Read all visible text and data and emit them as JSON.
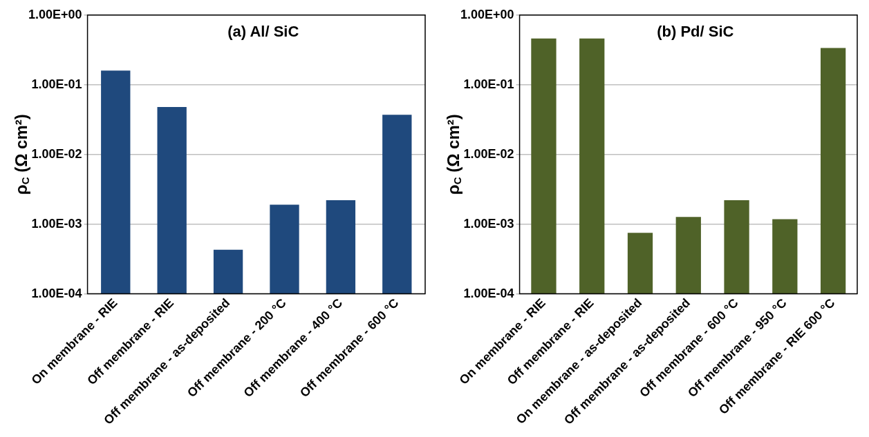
{
  "chart_data": [
    {
      "type": "bar",
      "title": "(a) Al/ SiC",
      "ylabel": "ρ$_{C}$ (Ω cm²)",
      "categories": [
        "On membrane - RIE",
        "Off membrane - RIE",
        "Off membrane - as-deposited",
        "Off membrane - 200 °C",
        "Off membrane - 400 °C",
        "Off membrane - 600 °C"
      ],
      "values": [
        0.16,
        0.048,
        0.00043,
        0.0019,
        0.0022,
        0.037
      ],
      "color": "#1f497d",
      "log": "y",
      "ylim": [
        0.0001,
        1
      ],
      "yticks": [
        {
          "value": 0.0001,
          "label": "1.00E-04"
        },
        {
          "value": 0.001,
          "label": "1.00E-03"
        },
        {
          "value": 0.01,
          "label": "1.00E-02"
        },
        {
          "value": 0.1,
          "label": "1.00E-01"
        },
        {
          "value": 1,
          "label": "1.00E+00"
        }
      ],
      "grid": "y",
      "legend": false
    },
    {
      "type": "bar",
      "title": "(b) Pd/ SiC",
      "ylabel": "ρ$_{C}$ (Ω cm²)",
      "categories": [
        "On membrane - RIE",
        "Off membrane - RIE",
        "On membrane - as-deposited",
        "Off membrane - as-deposited",
        "Off membrane - 600 °C",
        "Off membrane - 950 °C",
        "Off membrane - RIE 600 °C"
      ],
      "values": [
        0.46,
        0.46,
        0.00075,
        0.00127,
        0.0022,
        0.00118,
        0.336
      ],
      "color": "#4f6228",
      "log": "y",
      "ylim": [
        0.0001,
        1
      ],
      "yticks": [
        {
          "value": 0.0001,
          "label": "1.00E-04"
        },
        {
          "value": 0.001,
          "label": "1.00E-03"
        },
        {
          "value": 0.01,
          "label": "1.00E-02"
        },
        {
          "value": 0.1,
          "label": "1.00E-01"
        },
        {
          "value": 1,
          "label": "1.00E+00"
        }
      ],
      "grid": "y",
      "legend": false
    }
  ]
}
